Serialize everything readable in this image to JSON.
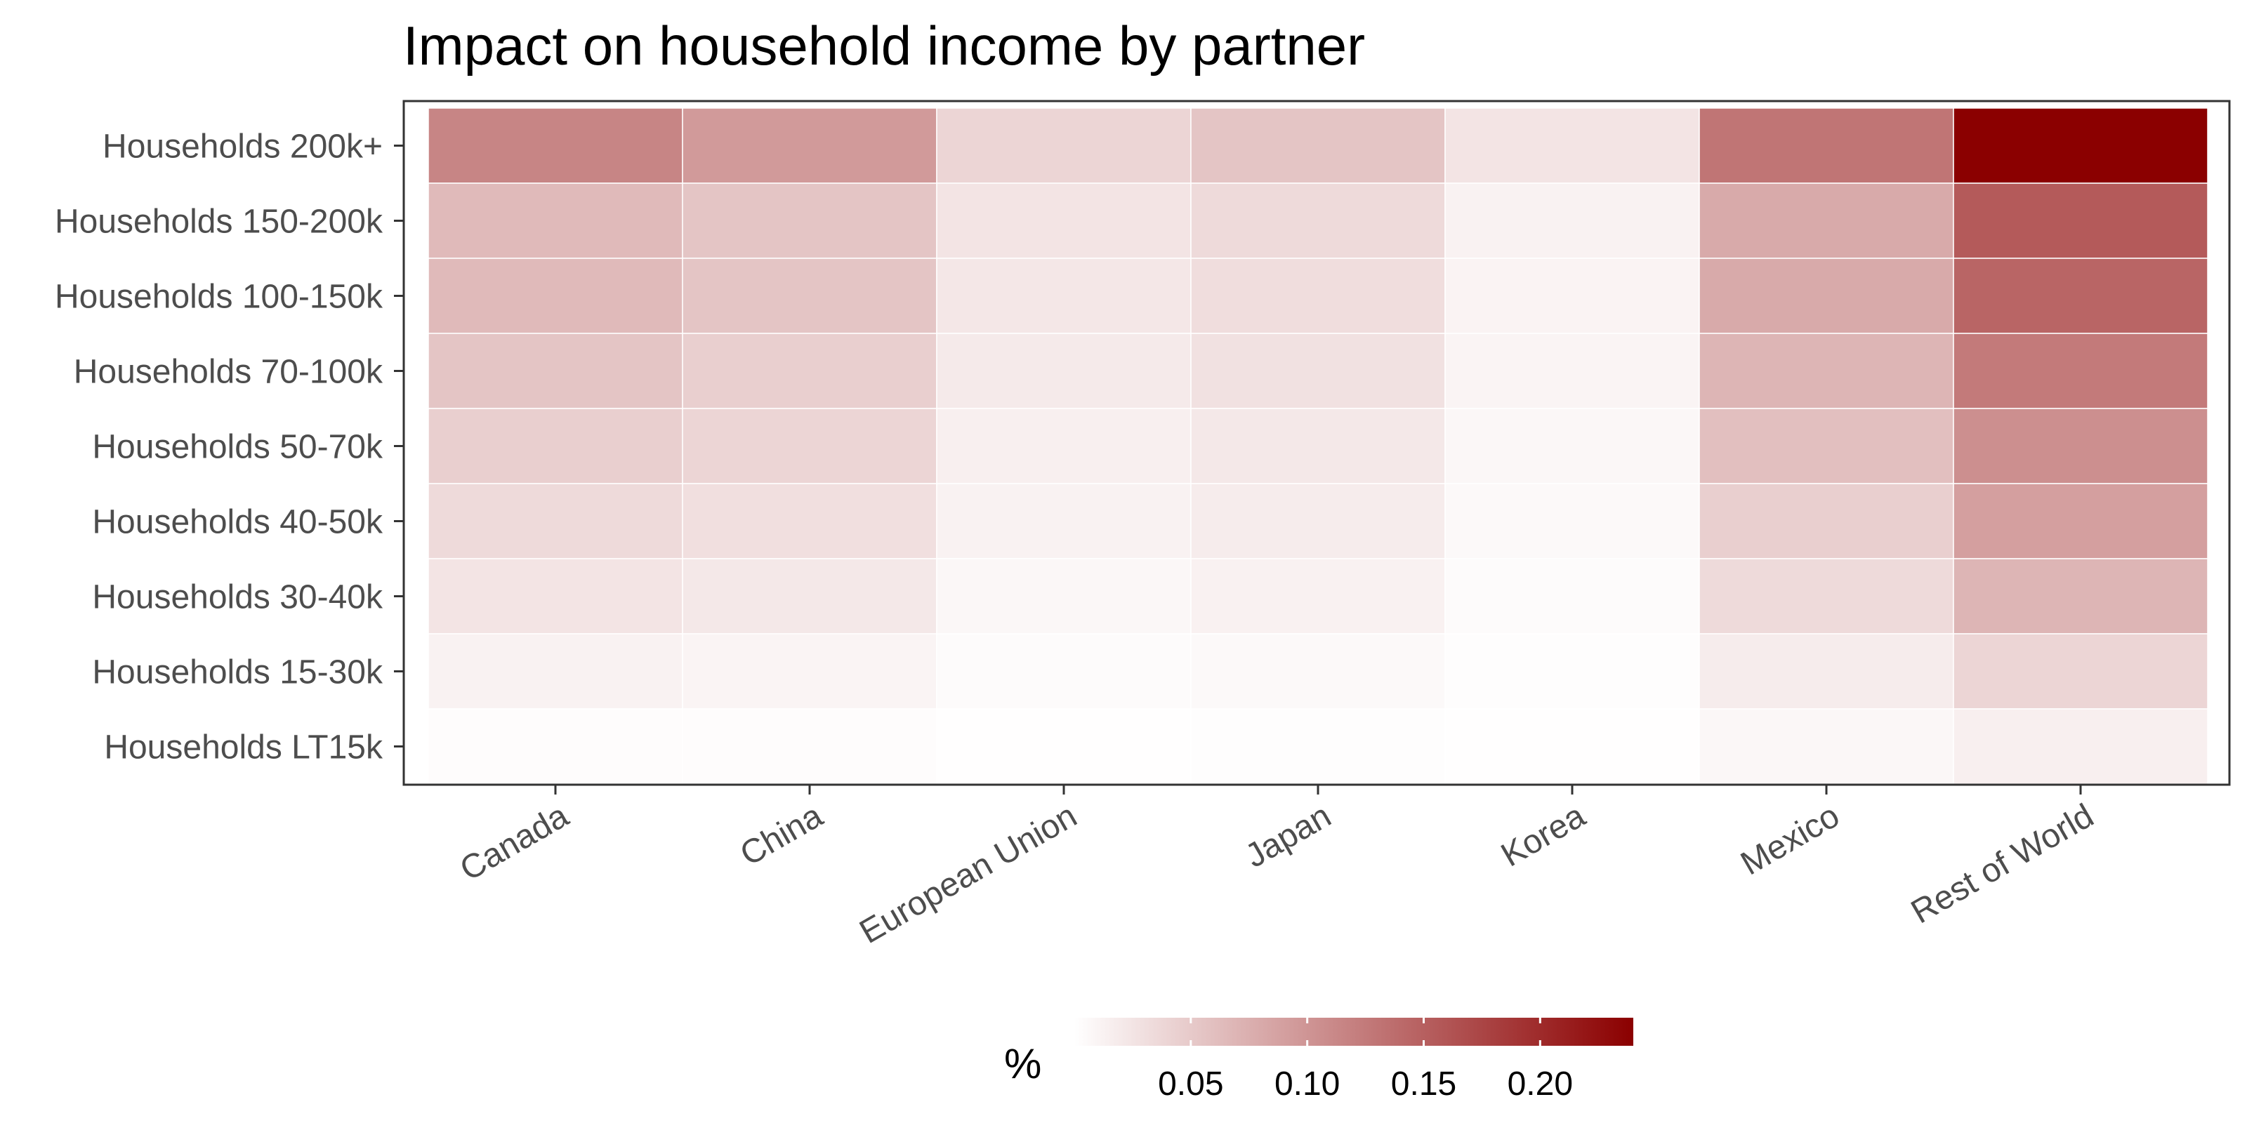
{
  "chart_data": {
    "type": "heatmap",
    "title": "Impact on household income by partner",
    "xlabel": "",
    "ylabel": "",
    "x_categories": [
      "Canada",
      "China",
      "European Union",
      "Japan",
      "Korea",
      "Mexico",
      "Rest of World"
    ],
    "y_categories": [
      "Households 200k+",
      "Households 150-200k",
      "Households 100-150k",
      "Households 70-100k",
      "Households 50-70k",
      "Households 40-50k",
      "Households 30-40k",
      "Households 15-30k",
      "Households LT15k"
    ],
    "values": [
      [
        0.115,
        0.095,
        0.04,
        0.055,
        0.025,
        0.13,
        0.24
      ],
      [
        0.065,
        0.055,
        0.025,
        0.035,
        0.012,
        0.08,
        0.155
      ],
      [
        0.065,
        0.055,
        0.023,
        0.032,
        0.011,
        0.08,
        0.145
      ],
      [
        0.055,
        0.045,
        0.02,
        0.028,
        0.01,
        0.07,
        0.125
      ],
      [
        0.045,
        0.04,
        0.015,
        0.022,
        0.008,
        0.06,
        0.105
      ],
      [
        0.035,
        0.03,
        0.012,
        0.018,
        0.006,
        0.045,
        0.09
      ],
      [
        0.025,
        0.022,
        0.008,
        0.013,
        0.004,
        0.035,
        0.07
      ],
      [
        0.012,
        0.01,
        0.004,
        0.006,
        0.002,
        0.018,
        0.04
      ],
      [
        0.003,
        0.003,
        0.001,
        0.002,
        0.001,
        0.008,
        0.015
      ]
    ],
    "legend": {
      "title": "%",
      "position": "bottom",
      "ticks": [
        0.05,
        0.1,
        0.15,
        0.2
      ],
      "tick_labels": [
        "0.05",
        "0.10",
        "0.15",
        "0.20"
      ],
      "range": [
        0,
        0.24
      ],
      "low_color": "#ffffff",
      "high_color": "#8b0000"
    },
    "grid": false
  }
}
